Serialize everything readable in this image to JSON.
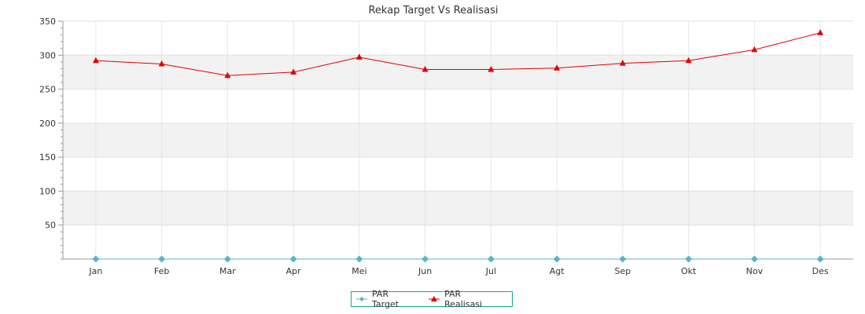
{
  "chart_data": {
    "type": "line",
    "title": "Rekap Target Vs Realisasi",
    "xlabel": "",
    "ylabel": "",
    "categories": [
      "Jan",
      "Feb",
      "Mar",
      "Apr",
      "Mei",
      "Jun",
      "Jul",
      "Agt",
      "Sep",
      "Okt",
      "Nov",
      "Des"
    ],
    "ylim": [
      0,
      350
    ],
    "yticks": [
      50,
      100,
      150,
      200,
      250,
      300,
      350
    ],
    "grid": true,
    "legend_position": "bottom",
    "series": [
      {
        "name": "PAR Target",
        "color": "#5ab4c8",
        "marker": "diamond",
        "values": [
          0,
          0,
          0,
          0,
          0,
          0,
          0,
          0,
          0,
          0,
          0,
          0
        ]
      },
      {
        "name": "PAR Realisasi",
        "color": "#e00000",
        "marker": "triangle",
        "values": [
          292,
          287,
          270,
          275,
          297,
          279,
          279,
          281,
          288,
          292,
          308,
          333
        ]
      }
    ]
  }
}
